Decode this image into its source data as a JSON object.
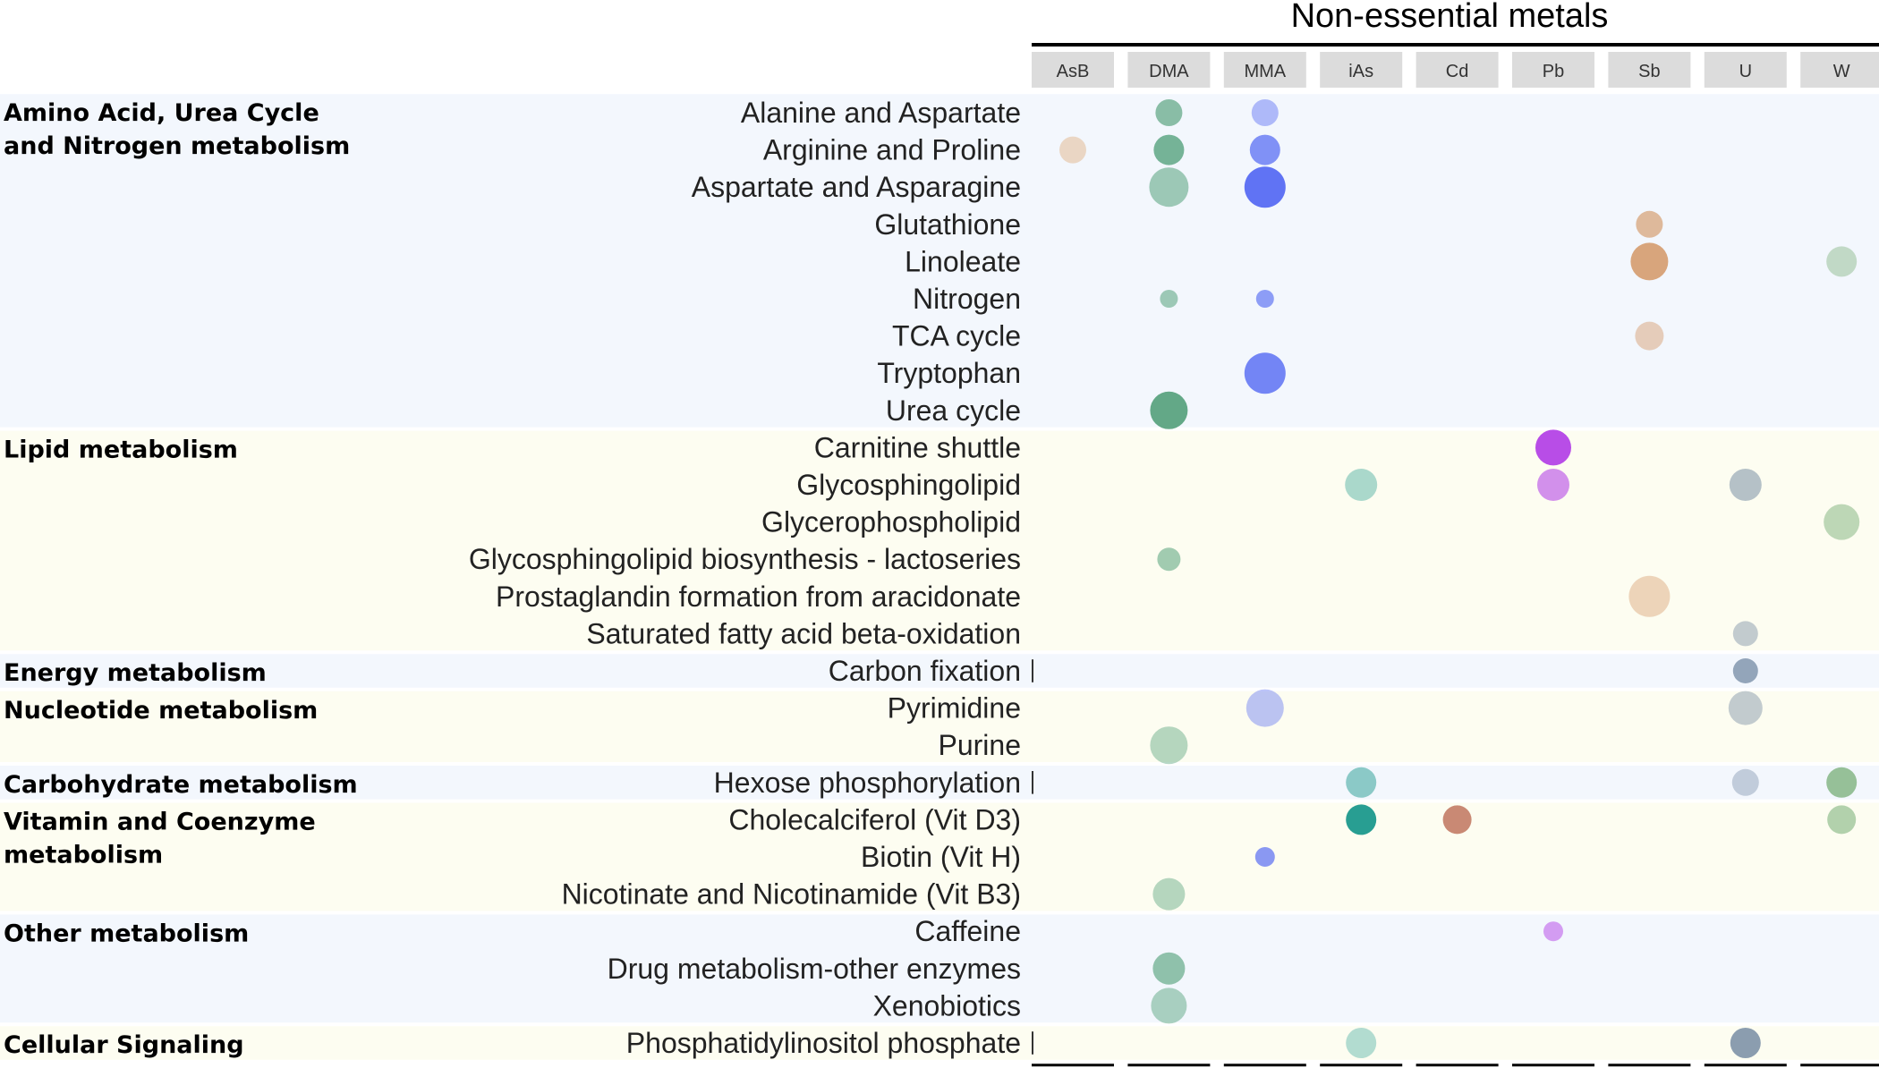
{
  "chart_data": {
    "type": "bubble-matrix",
    "title": "Non-essential metals",
    "columns": [
      "AsB",
      "DMA",
      "MMA",
      "iAs",
      "Cd",
      "Pb",
      "Sb",
      "U",
      "W"
    ],
    "colors": {
      "AsB": "#e3b991",
      "DMA": "#4f9e77",
      "MMA": "#4c62f2",
      "iAs": "#1f9a8e",
      "Cd": "#b8654d",
      "Pb": "#b23ee6",
      "Sb": "#d1905c",
      "U": "#5f7896",
      "W": "#7aaf78"
    },
    "groups": [
      {
        "label": "Amino Acid, Urea Cycle and Nitrogen metabolism",
        "rows": [
          "Alanine and Aspartate",
          "Arginine and Proline",
          "Aspartate and Asparagine",
          "Glutathione",
          "Linoleate",
          "Nitrogen",
          "TCA cycle",
          "Tryptophan",
          "Urea cycle"
        ]
      },
      {
        "label": "Lipid metabolism",
        "rows": [
          "Carnitine shuttle",
          "Glycosphingolipid",
          "Glycerophospholipid",
          "Glycosphingolipid biosynthesis - lactoseries",
          "Prostaglandin formation from aracidonate",
          "Saturated fatty acid beta-oxidation"
        ]
      },
      {
        "label": "Energy metabolism",
        "rows": [
          "Carbon fixation"
        ]
      },
      {
        "label": "Nucleotide metabolism",
        "rows": [
          "Pyrimidine",
          "Purine"
        ]
      },
      {
        "label": "Carbohydrate metabolism",
        "rows": [
          "Hexose phosphorylation"
        ]
      },
      {
        "label": "Vitamin and Coenzyme metabolism",
        "rows": [
          "Cholecalciferol (Vit D3)",
          "Biotin (Vit H)",
          "Nicotinate and Nicotinamide (Vit B3)"
        ]
      },
      {
        "label": "Other metabolism",
        "rows": [
          "Caffeine",
          "Drug metabolism-other enzymes",
          "Xenobiotics"
        ]
      },
      {
        "label": "Cellular Signaling",
        "rows": [
          "Phosphatidylinositol phosphate"
        ]
      }
    ],
    "points": [
      {
        "row": "Alanine and Aspartate",
        "col": "DMA",
        "size": 0.45,
        "intensity": 0.6
      },
      {
        "row": "Alanine and Aspartate",
        "col": "MMA",
        "size": 0.45,
        "intensity": 0.3
      },
      {
        "row": "Arginine and Proline",
        "col": "AsB",
        "size": 0.45,
        "intensity": 0.45
      },
      {
        "row": "Arginine and Proline",
        "col": "DMA",
        "size": 0.55,
        "intensity": 0.75
      },
      {
        "row": "Arginine and Proline",
        "col": "MMA",
        "size": 0.55,
        "intensity": 0.65
      },
      {
        "row": "Aspartate and Asparagine",
        "col": "DMA",
        "size": 0.8,
        "intensity": 0.45
      },
      {
        "row": "Aspartate and Asparagine",
        "col": "MMA",
        "size": 0.85,
        "intensity": 0.9
      },
      {
        "row": "Glutathione",
        "col": "Sb",
        "size": 0.45,
        "intensity": 0.55
      },
      {
        "row": "Linoleate",
        "col": "Sb",
        "size": 0.75,
        "intensity": 0.8
      },
      {
        "row": "Linoleate",
        "col": "W",
        "size": 0.55,
        "intensity": 0.3
      },
      {
        "row": "Nitrogen",
        "col": "DMA",
        "size": 0.2,
        "intensity": 0.45
      },
      {
        "row": "Nitrogen",
        "col": "MMA",
        "size": 0.2,
        "intensity": 0.55
      },
      {
        "row": "TCA cycle",
        "col": "Sb",
        "size": 0.5,
        "intensity": 0.3
      },
      {
        "row": "Tryptophan",
        "col": "MMA",
        "size": 0.85,
        "intensity": 0.75
      },
      {
        "row": "Urea cycle",
        "col": "DMA",
        "size": 0.75,
        "intensity": 0.9
      },
      {
        "row": "Carnitine shuttle",
        "col": "Pb",
        "size": 0.7,
        "intensity": 0.95
      },
      {
        "row": "Glycosphingolipid",
        "col": "iAs",
        "size": 0.6,
        "intensity": 0.25
      },
      {
        "row": "Glycosphingolipid",
        "col": "Pb",
        "size": 0.6,
        "intensity": 0.5
      },
      {
        "row": "Glycosphingolipid",
        "col": "U",
        "size": 0.6,
        "intensity": 0.35
      },
      {
        "row": "Glycerophospholipid",
        "col": "W",
        "size": 0.7,
        "intensity": 0.4
      },
      {
        "row": "Glycosphingolipid biosynthesis - lactoseries",
        "col": "DMA",
        "size": 0.35,
        "intensity": 0.45
      },
      {
        "row": "Prostaglandin formation from aracidonate",
        "col": "Sb",
        "size": 0.85,
        "intensity": 0.25
      },
      {
        "row": "Saturated fatty acid beta-oxidation",
        "col": "U",
        "size": 0.4,
        "intensity": 0.25
      },
      {
        "row": "Carbon fixation",
        "col": "U",
        "size": 0.4,
        "intensity": 0.6
      },
      {
        "row": "Pyrimidine",
        "col": "MMA",
        "size": 0.75,
        "intensity": 0.25
      },
      {
        "row": "Pyrimidine",
        "col": "U",
        "size": 0.65,
        "intensity": 0.25
      },
      {
        "row": "Purine",
        "col": "DMA",
        "size": 0.75,
        "intensity": 0.3
      },
      {
        "row": "Hexose phosphorylation",
        "col": "iAs",
        "size": 0.55,
        "intensity": 0.4
      },
      {
        "row": "Hexose phosphorylation",
        "col": "U",
        "size": 0.45,
        "intensity": 0.2
      },
      {
        "row": "Hexose phosphorylation",
        "col": "W",
        "size": 0.55,
        "intensity": 0.75
      },
      {
        "row": "Cholecalciferol (Vit D3)",
        "col": "iAs",
        "size": 0.55,
        "intensity": 1.0
      },
      {
        "row": "Cholecalciferol (Vit D3)",
        "col": "Cd",
        "size": 0.5,
        "intensity": 0.75
      },
      {
        "row": "Cholecalciferol (Vit D3)",
        "col": "W",
        "size": 0.5,
        "intensity": 0.5
      },
      {
        "row": "Biotin (Vit H)",
        "col": "MMA",
        "size": 0.25,
        "intensity": 0.6
      },
      {
        "row": "Nicotinate and Nicotinamide (Vit B3)",
        "col": "DMA",
        "size": 0.6,
        "intensity": 0.3
      },
      {
        "row": "Caffeine",
        "col": "Pb",
        "size": 0.25,
        "intensity": 0.4
      },
      {
        "row": "Drug metabolism-other enzymes",
        "col": "DMA",
        "size": 0.6,
        "intensity": 0.55
      },
      {
        "row": "Xenobiotics",
        "col": "DMA",
        "size": 0.7,
        "intensity": 0.35
      },
      {
        "row": "Phosphatidylinositol phosphate",
        "col": "iAs",
        "size": 0.55,
        "intensity": 0.2
      },
      {
        "row": "Phosphatidylinositol phosphate",
        "col": "U",
        "size": 0.55,
        "intensity": 0.7
      }
    ]
  }
}
